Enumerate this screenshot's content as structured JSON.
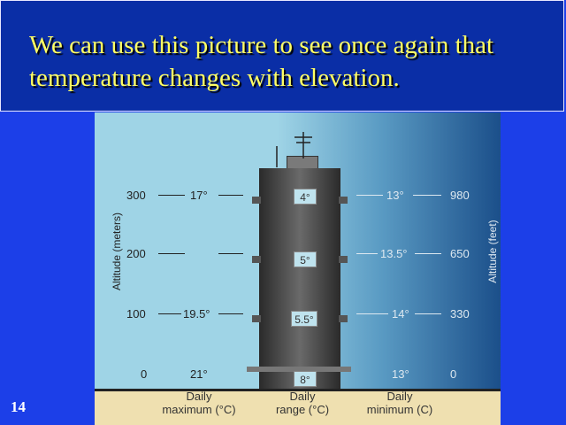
{
  "slide": {
    "title": "We can use this picture to see once again that temperature changes with elevation.",
    "number": "14"
  },
  "figure": {
    "left_axis_title": "Altitude (meters)",
    "right_axis_title": "Altitude (feet)",
    "rows": [
      {
        "meters": "300",
        "max": "17°",
        "range": "4°",
        "min": "13°",
        "feet": "980"
      },
      {
        "meters": "200",
        "max": "",
        "range": "5°",
        "min": "13.5°",
        "feet": "650"
      },
      {
        "meters": "100",
        "max": "19.5°",
        "range": "5.5°",
        "min": "14°",
        "feet": "330"
      },
      {
        "meters": "0",
        "max": "21°",
        "range": "8°",
        "min": "13°",
        "feet": "0"
      }
    ],
    "footer": {
      "max_line1": "Daily",
      "max_line2": "maximum (°C)",
      "range_line1": "Daily",
      "range_line2": "range (°C)",
      "min_line1": "Daily",
      "min_line2": "minimum (C)"
    }
  }
}
